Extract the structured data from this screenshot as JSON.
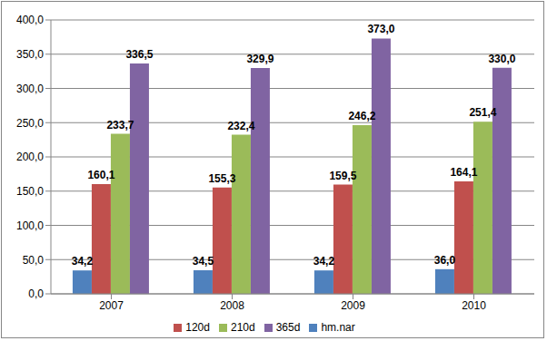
{
  "chart_data": {
    "type": "bar",
    "categories": [
      "2007",
      "2008",
      "2009",
      "2010"
    ],
    "series": [
      {
        "name": "hm.nar",
        "color": "#4f81bd",
        "values": [
          34.2,
          34.5,
          34.2,
          36.0
        ],
        "value_labels": [
          "34,2",
          "34,5",
          "34,2",
          "36,0"
        ]
      },
      {
        "name": "120d",
        "color": "#c0504d",
        "values": [
          160.1,
          155.3,
          159.5,
          164.1
        ],
        "value_labels": [
          "160,1",
          "155,3",
          "159,5",
          "164,1"
        ]
      },
      {
        "name": "210d",
        "color": "#9bbb59",
        "values": [
          233.7,
          232.4,
          246.2,
          251.4
        ],
        "value_labels": [
          "233,7",
          "232,4",
          "246,2",
          "251,4"
        ]
      },
      {
        "name": "365d",
        "color": "#8064a2",
        "values": [
          336.5,
          329.9,
          373.0,
          330.0
        ],
        "value_labels": [
          "336,5",
          "329,9",
          "373,0",
          "330,0"
        ]
      }
    ],
    "ylim": [
      0,
      400
    ],
    "yticks": [
      {
        "value": 0,
        "label": "0,0"
      },
      {
        "value": 50,
        "label": "50,0"
      },
      {
        "value": 100,
        "label": "100,0"
      },
      {
        "value": 150,
        "label": "150,0"
      },
      {
        "value": 200,
        "label": "200,0"
      },
      {
        "value": 250,
        "label": "250,0"
      },
      {
        "value": 300,
        "label": "300,0"
      },
      {
        "value": 350,
        "label": "350,0"
      },
      {
        "value": 400,
        "label": "400,0"
      }
    ],
    "grid": true,
    "legend": "bottom",
    "data_labels": true
  }
}
